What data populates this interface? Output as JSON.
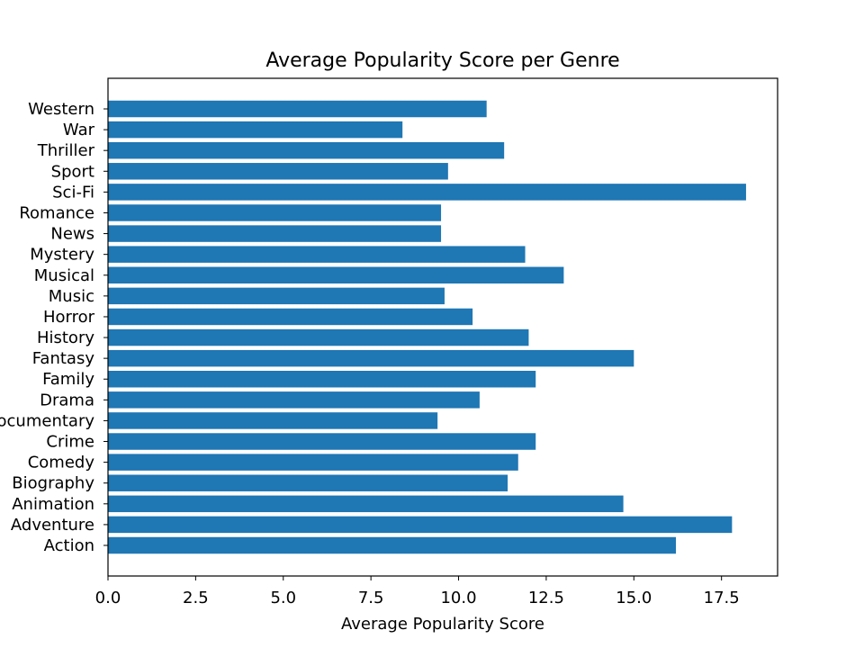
{
  "chart_data": {
    "type": "bar",
    "orientation": "horizontal",
    "title": "Average Popularity Score per Genre",
    "xlabel": "Average Popularity Score",
    "ylabel": "",
    "xlim": [
      0,
      19.1
    ],
    "xticks": [
      "0.0",
      "2.5",
      "5.0",
      "7.5",
      "10.0",
      "12.5",
      "15.0",
      "17.5"
    ],
    "grid": false,
    "legend": "none",
    "bar_color": "#1f77b4",
    "categories": [
      "Action",
      "Adventure",
      "Animation",
      "Biography",
      "Comedy",
      "Crime",
      "Documentary",
      "Drama",
      "Family",
      "Fantasy",
      "History",
      "Horror",
      "Music",
      "Musical",
      "Mystery",
      "News",
      "Romance",
      "Sci-Fi",
      "Sport",
      "Thriller",
      "War",
      "Western"
    ],
    "values": [
      16.2,
      17.8,
      14.7,
      11.4,
      11.7,
      12.2,
      9.4,
      10.6,
      12.2,
      15.0,
      12.0,
      10.4,
      9.6,
      13.0,
      11.9,
      9.5,
      9.5,
      18.2,
      9.7,
      11.3,
      8.4,
      10.8
    ]
  }
}
